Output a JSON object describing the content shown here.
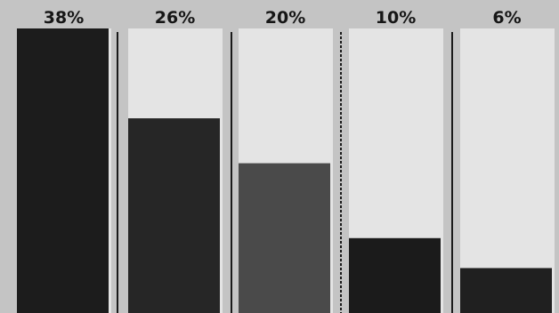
{
  "chart_data": {
    "type": "bar",
    "title": "",
    "xlabel": "",
    "ylabel": "",
    "categories": [
      "",
      "",
      "",
      "",
      ""
    ],
    "values": [
      38,
      26,
      20,
      10,
      6
    ],
    "data_labels": [
      "38%",
      "26%",
      "20%",
      "10%",
      "6%"
    ],
    "ylim": [
      0,
      38
    ],
    "grid": false,
    "legend": "none",
    "colors": {
      "background": "#c4c4c4",
      "track": "#e4e4e4",
      "bars": [
        "#1c1c1c",
        "#262626",
        "#4a4a4a",
        "#1b1b1b",
        "#202020"
      ],
      "separator": "#1a1a1a"
    }
  }
}
